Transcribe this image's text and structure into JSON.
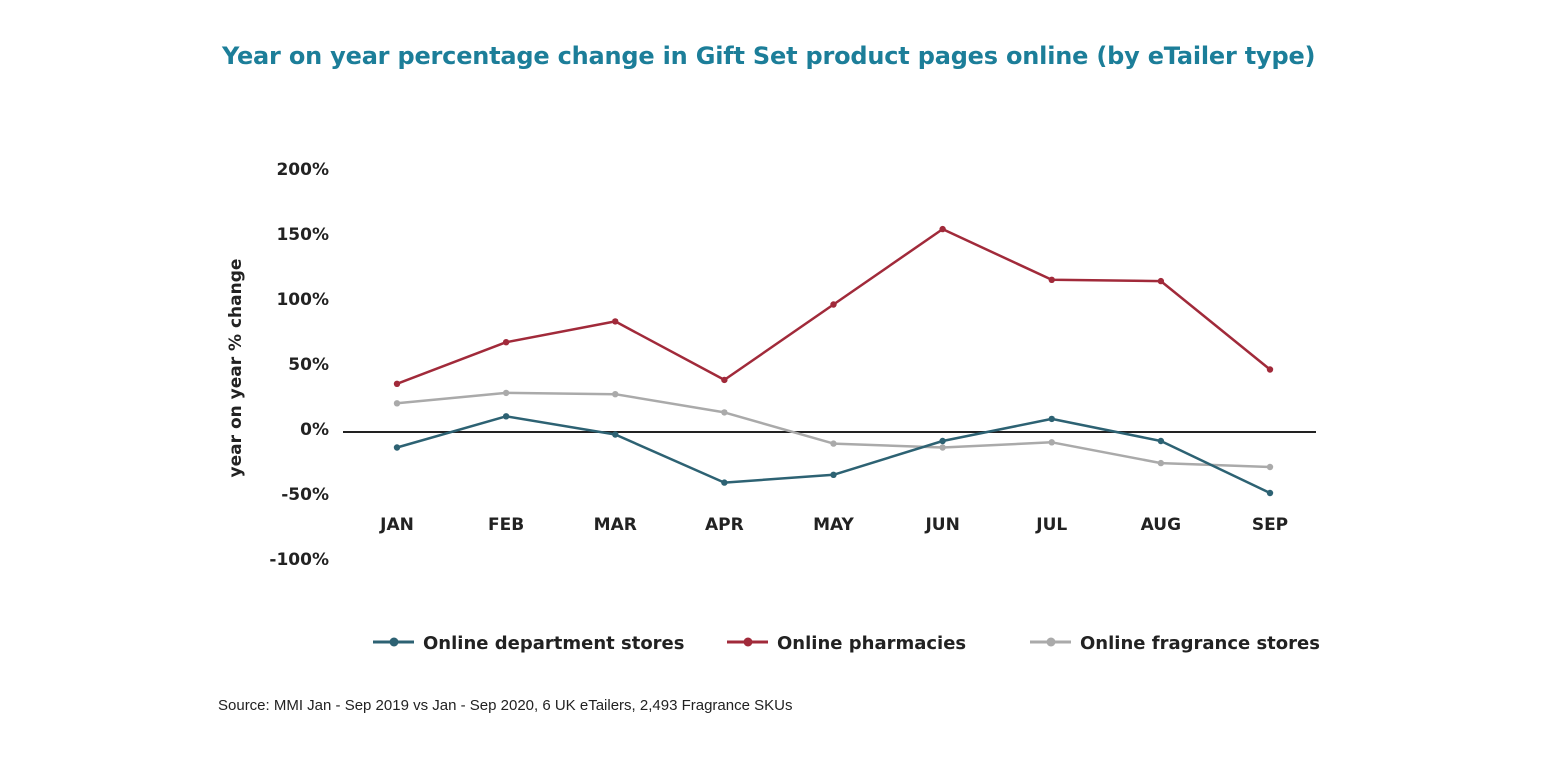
{
  "chart_data": {
    "type": "line",
    "title": "Year on year percentage change in Gift Set product pages online (by eTailer type)",
    "ylabel": "year on year % change",
    "xlabel": "",
    "categories": [
      "JAN",
      "FEB",
      "MAR",
      "APR",
      "MAY",
      "JUN",
      "JUL",
      "AUG",
      "SEP"
    ],
    "ylim": [
      -100,
      200
    ],
    "yticks": [
      200,
      150,
      100,
      50,
      0,
      -50,
      -100
    ],
    "ytick_labels": [
      "200%",
      "150%",
      "100%",
      "50%",
      "0%",
      "-50%",
      "-100%"
    ],
    "grid": false,
    "legend_position": "bottom",
    "series": [
      {
        "name": "Online department stores",
        "color": "#2d6273",
        "values": [
          -15,
          9,
          -5,
          -42,
          -36,
          -10,
          7,
          -10,
          -50
        ]
      },
      {
        "name": "Online pharmacies",
        "color": "#a12a3a",
        "values": [
          34,
          66,
          82,
          37,
          95,
          153,
          114,
          113,
          45
        ]
      },
      {
        "name": "Online fragrance stores",
        "color": "#aaaaaa",
        "values": [
          19,
          27,
          26,
          12,
          -12,
          -15,
          -11,
          -27,
          -30
        ]
      }
    ],
    "source": "Source: MMI Jan - Sep 2019 vs Jan - Sep  2020, 6 UK eTailers, 2,493 Fragrance SKUs"
  }
}
